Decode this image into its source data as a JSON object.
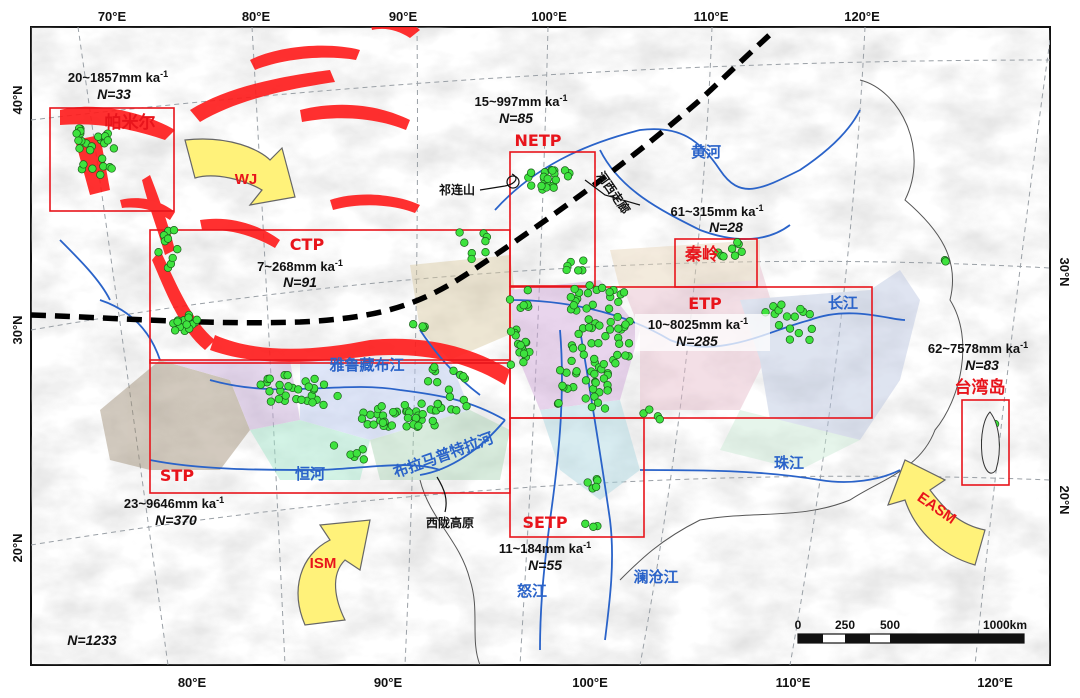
{
  "lon_ticks_top": [
    "70°E",
    "80°E",
    "90°E",
    "100°E",
    "110°E",
    "120°E"
  ],
  "lon_ticks_bottom": [
    "80°E",
    "90°E",
    "100°E",
    "110°E",
    "120°E"
  ],
  "lat_ticks_left": [
    "40°N",
    "30°N",
    "20°N"
  ],
  "lat_ticks_right": [
    "30°N",
    "20°N"
  ],
  "regions": {
    "pamir": {
      "name": "帕米尔",
      "range": "20~1857mm ka",
      "sup": "-1",
      "n": "N=33"
    },
    "netp": {
      "name": "NETP",
      "range": "15~997mm ka",
      "sup": "-1",
      "n": "N=85"
    },
    "ctp": {
      "name": "CTP",
      "range": "7~268mm ka",
      "sup": "-1",
      "n": "N=91"
    },
    "qinling": {
      "name": "秦岭",
      "range": "61~315mm ka",
      "sup": "-1",
      "n": "N=28"
    },
    "etp": {
      "name": "ETP",
      "range": "10~8025mm ka",
      "sup": "-1",
      "n": "N=285"
    },
    "taiwan": {
      "name": "台湾岛",
      "range": "62~7578mm ka",
      "sup": "-1",
      "n": "N=83"
    },
    "stp": {
      "name": "STP",
      "range": "23~9646mm ka",
      "sup": "-1",
      "n": "N=370"
    },
    "setp": {
      "name": "SETP",
      "range": "11~184mm ka",
      "sup": "-1",
      "n": "N=55"
    }
  },
  "rivers": {
    "huanghe": "黄河",
    "changjiang": "长江",
    "yarlung": "雅鲁藏布江",
    "brahmaputra": "布拉马普特拉河",
    "ganges": "恒河",
    "zhujiang": "珠江",
    "nujiang": "怒江",
    "lancang": "澜沧江"
  },
  "places": {
    "qilian": "祁连山",
    "hexi": "河西走廊",
    "xilong": "西陇高原"
  },
  "monsoons": {
    "wj": "WJ",
    "ism": "ISM",
    "easm": "EASM"
  },
  "total": "N=1233",
  "scale_bar": {
    "labels": [
      "0",
      "250",
      "500",
      "1000km"
    ]
  },
  "colors": {
    "region_box": "#e8141b",
    "sample": "#3ee33e",
    "river": "#2a63c9",
    "boundary": "#000000",
    "monsoon_arrow": "#fff27a",
    "glacier": "#ff1a1a"
  }
}
